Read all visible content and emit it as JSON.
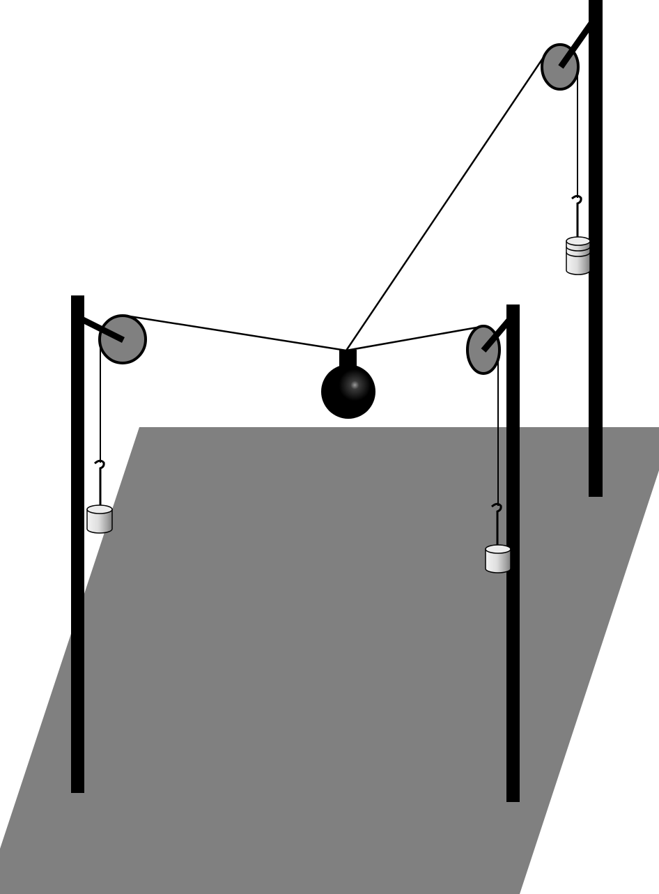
{
  "diagram": {
    "colors": {
      "background": "#ffffff",
      "floor": "#808080",
      "pole": "#000000",
      "pulley_fill": "#808080",
      "pulley_stroke": "#000000",
      "string": "#000000",
      "ball": "#000000",
      "weight_light": "#f2f2f2",
      "weight_dark": "#8c8c8c"
    },
    "components": {
      "floor": "floor-plane",
      "poles": [
        "left-pole",
        "middle-pole",
        "right-pole"
      ],
      "pulleys": [
        "left-pulley",
        "middle-pulley",
        "right-pulley"
      ],
      "hanging_weights": [
        {
          "name": "left-weight",
          "stacked_disks": 1
        },
        {
          "name": "middle-weight",
          "stacked_disks": 1
        },
        {
          "name": "right-weight",
          "stacked_disks": 3
        }
      ],
      "central_mass": "black-ball"
    }
  }
}
